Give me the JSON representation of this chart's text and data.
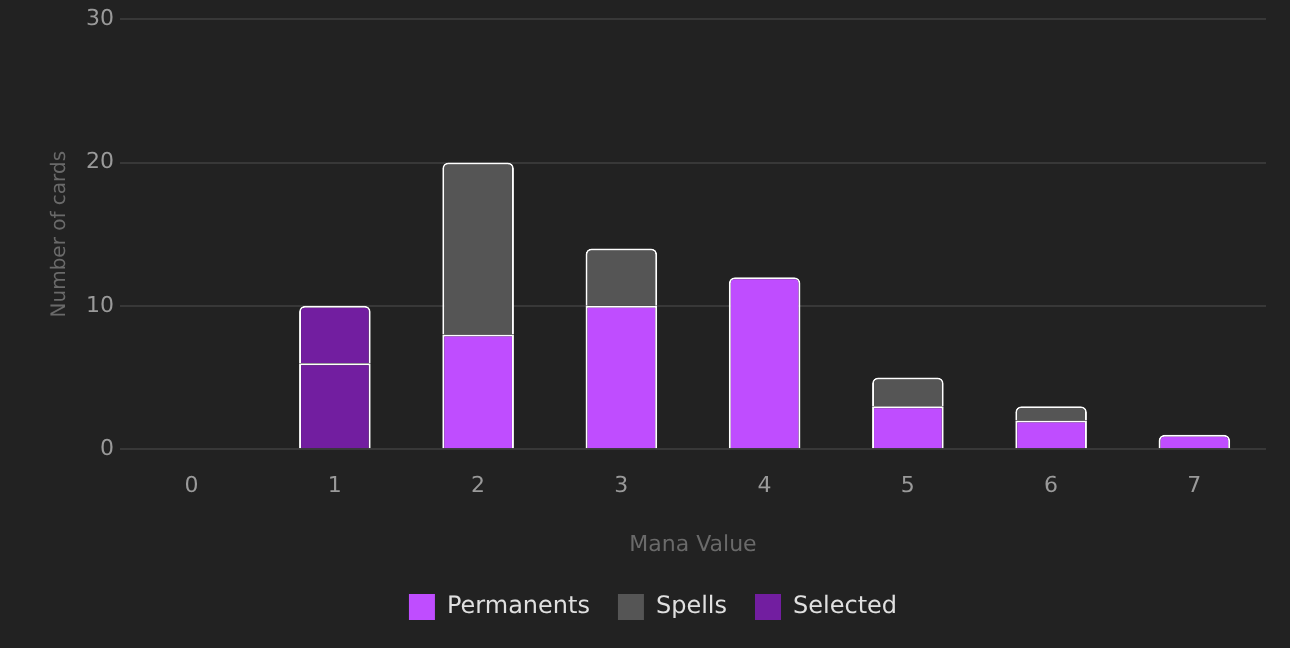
{
  "chart_data": {
    "type": "bar",
    "stacked": true,
    "xlabel": "Mana Value",
    "ylabel": "Number of cards",
    "categories": [
      "0",
      "1",
      "2",
      "3",
      "4",
      "5",
      "6",
      "7"
    ],
    "series": [
      {
        "name": "Permanents",
        "color": "#bf4dff",
        "colors": [
          "#bf4dff",
          "#721ea0",
          "#bf4dff",
          "#bf4dff",
          "#bf4dff",
          "#bf4dff",
          "#bf4dff",
          "#bf4dff"
        ],
        "values": [
          0,
          6,
          8,
          10,
          12,
          3,
          2,
          1
        ]
      },
      {
        "name": "Spells",
        "color": "#555555",
        "colors": [
          "#555555",
          "#721ea0",
          "#555555",
          "#555555",
          "#555555",
          "#555555",
          "#555555",
          "#555555"
        ],
        "values": [
          0,
          4,
          12,
          4,
          0,
          2,
          1,
          0
        ]
      },
      {
        "name": "Selected",
        "color": "#721ea0",
        "values": [
          null,
          null,
          null,
          null,
          null,
          null,
          null,
          null
        ]
      }
    ],
    "ylim": [
      0,
      30
    ],
    "yticks": [
      0,
      10,
      20,
      30
    ],
    "grid": "y",
    "legend": "bottom"
  }
}
